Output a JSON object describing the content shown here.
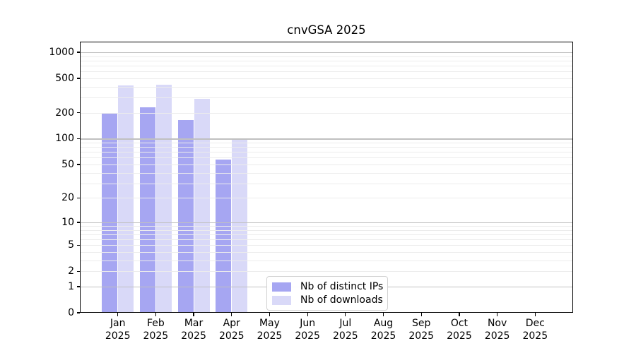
{
  "title": "cnvGSA 2025",
  "colors": {
    "ips_bar": "#a6a6f2",
    "downloads_bar": "#d9d9f8",
    "grid_major": "#c0c0c0",
    "grid_minor": "#ececec",
    "axis": "#000000",
    "legend_border": "#d2d2d2"
  },
  "legend": {
    "items": [
      {
        "label": "Nb of distinct IPs",
        "color_key": "ips_bar"
      },
      {
        "label": "Nb of downloads",
        "color_key": "downloads_bar"
      }
    ]
  },
  "chart_data": {
    "type": "bar",
    "title": "cnvGSA 2025",
    "categories": [
      "Jan",
      "Feb",
      "Mar",
      "Apr",
      "May",
      "Jun",
      "Jul",
      "Aug",
      "Sep",
      "Oct",
      "Nov",
      "Dec"
    ],
    "year_label": "2025",
    "series": [
      {
        "name": "Nb of distinct IPs",
        "values": [
          200,
          230,
          165,
          57,
          null,
          null,
          null,
          null,
          null,
          null,
          null,
          null
        ]
      },
      {
        "name": "Nb of downloads",
        "values": [
          415,
          425,
          290,
          100,
          null,
          null,
          null,
          null,
          null,
          null,
          null,
          null
        ]
      }
    ],
    "y_ticks": [
      0,
      1,
      2,
      5,
      10,
      20,
      50,
      100,
      200,
      500,
      1000
    ],
    "y_scale": "log10(1+v)",
    "ylim": [
      0,
      1320
    ],
    "xlabel": "",
    "ylabel": "",
    "grid": "on",
    "legend_position": "lower center"
  }
}
